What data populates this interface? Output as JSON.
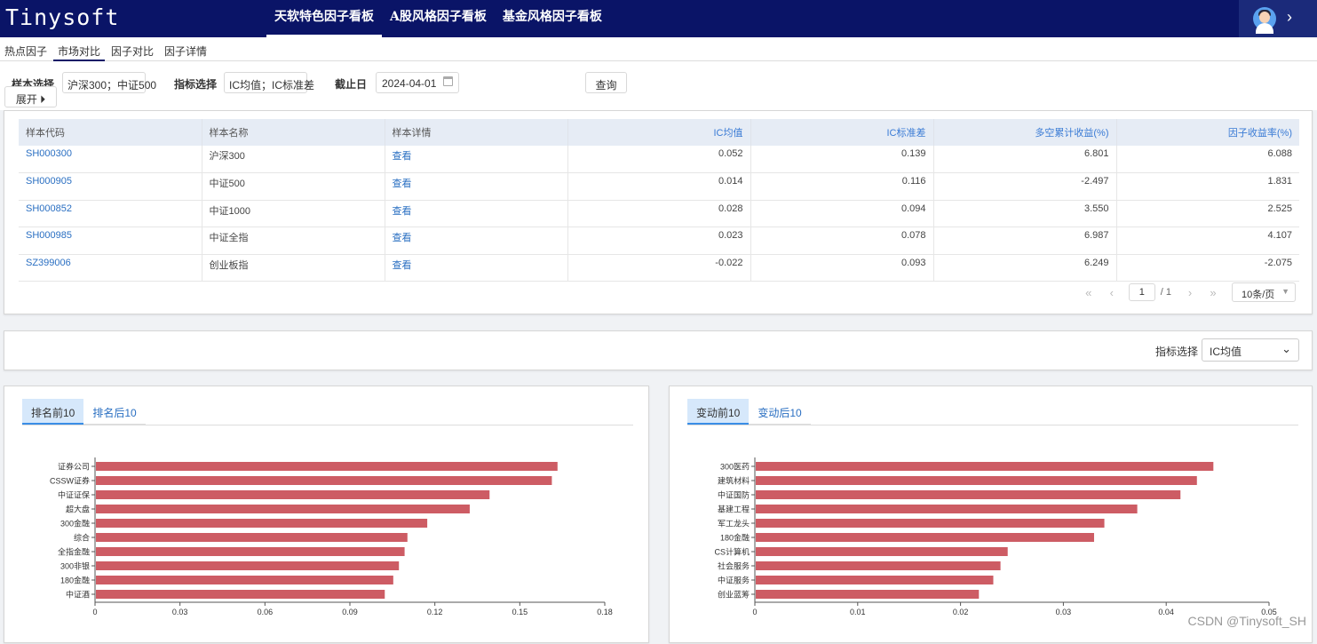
{
  "app": {
    "logo": "Tinysoft"
  },
  "top_nav": [
    {
      "label": "天软特色因子看板",
      "active": true
    },
    {
      "label": "A股风格因子看板",
      "active": false
    },
    {
      "label": "基金风格因子看板",
      "active": false
    }
  ],
  "sub_tabs": [
    {
      "label": "热点因子",
      "active": false
    },
    {
      "label": "市场对比",
      "active": true
    },
    {
      "label": "因子对比",
      "active": false
    },
    {
      "label": "因子详情",
      "active": false
    }
  ],
  "filters": {
    "sample_label": "样本选择",
    "sample_value": "沪深300；中证500",
    "expand_label": "展开 ⏵",
    "indicator_label": "指标选择",
    "indicator_value": "IC均值；IC标准差",
    "date_label": "截止日",
    "date_value": "2024-04-01",
    "query_label": "查询"
  },
  "table": {
    "headers": [
      "样本代码",
      "样本名称",
      "样本详情",
      "IC均值",
      "IC标准差",
      "多空累计收益(%)",
      "因子收益率(%)"
    ],
    "rows": [
      [
        "SH000300",
        "沪深300",
        "查看",
        "0.052",
        "0.139",
        "6.801",
        "6.088"
      ],
      [
        "SH000905",
        "中证500",
        "查看",
        "0.014",
        "0.116",
        "-2.497",
        "1.831"
      ],
      [
        "SH000852",
        "中证1000",
        "查看",
        "0.028",
        "0.094",
        "3.550",
        "2.525"
      ],
      [
        "SH000985",
        "中证全指",
        "查看",
        "0.023",
        "0.078",
        "6.987",
        "4.107"
      ],
      [
        "SZ399006",
        "创业板指",
        "查看",
        "-0.022",
        "0.093",
        "6.249",
        "-2.075"
      ]
    ]
  },
  "pager": {
    "current": "1",
    "total": "/ 1",
    "page_size": "10条/页"
  },
  "indicator_select": {
    "label": "指标选择",
    "value": "IC均值"
  },
  "left_chart": {
    "tabs": [
      {
        "label": "排名前10",
        "active": true
      },
      {
        "label": "排名后10",
        "active": false
      }
    ]
  },
  "right_chart": {
    "tabs": [
      {
        "label": "变动前10",
        "active": true
      },
      {
        "label": "变动后10",
        "active": false
      }
    ]
  },
  "chart_data": [
    {
      "type": "bar",
      "orientation": "horizontal",
      "categories": [
        "证券公司",
        "CSSW证券",
        "中证证保",
        "超大盘",
        "300金融",
        "综合",
        "全指金融",
        "300非银",
        "180金融",
        "中证酒"
      ],
      "values": [
        0.163,
        0.161,
        0.139,
        0.132,
        0.117,
        0.11,
        0.109,
        0.107,
        0.105,
        0.102
      ],
      "xlim": [
        0,
        0.18
      ],
      "ticks": [
        "0",
        "0.03",
        "0.06",
        "0.09",
        "0.12",
        "0.15",
        "0.18"
      ],
      "color": "#cd5c64"
    },
    {
      "type": "bar",
      "orientation": "horizontal",
      "categories": [
        "300医药",
        "建筑材料",
        "中证国防",
        "基建工程",
        "军工龙头",
        "180金融",
        "CS计算机",
        "社会服务",
        "中证服务",
        "创业蓝筹"
      ],
      "values": [
        0.0445,
        0.0429,
        0.0413,
        0.0371,
        0.0339,
        0.0329,
        0.0245,
        0.0238,
        0.0231,
        0.0217
      ],
      "xlim": [
        0,
        0.05
      ],
      "ticks": [
        "0",
        "0.01",
        "0.02",
        "0.03",
        "0.04",
        "0.05"
      ],
      "color": "#cd5c64"
    }
  ],
  "watermark": "CSDN @Tinysoft_SH"
}
